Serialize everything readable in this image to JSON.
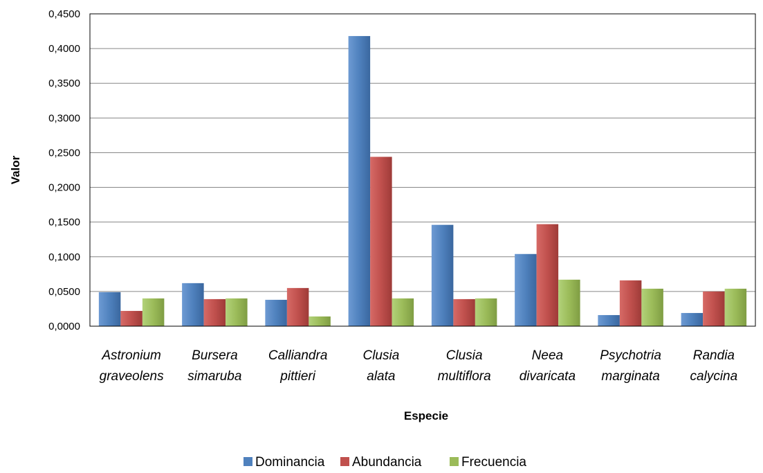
{
  "chart_data": {
    "type": "bar",
    "categories": [
      [
        "Astronium",
        "graveolens"
      ],
      [
        "Bursera",
        "simaruba"
      ],
      [
        "Calliandra",
        "pittieri"
      ],
      [
        "Clusia",
        "alata"
      ],
      [
        "Clusia",
        "multiflora"
      ],
      [
        "Neea",
        "divaricata"
      ],
      [
        "Psychotria",
        "marginata"
      ],
      [
        "Randia",
        "calycina"
      ]
    ],
    "series": [
      {
        "name": "Dominancia",
        "color": "#4f81bd",
        "values": [
          0.049,
          0.062,
          0.038,
          0.418,
          0.146,
          0.104,
          0.016,
          0.019
        ]
      },
      {
        "name": "Abundancia",
        "color": "#c0504d",
        "values": [
          0.022,
          0.039,
          0.055,
          0.244,
          0.039,
          0.147,
          0.066,
          0.05
        ]
      },
      {
        "name": "Frecuencia",
        "color": "#9bbb59",
        "values": [
          0.04,
          0.04,
          0.014,
          0.04,
          0.04,
          0.067,
          0.054,
          0.054
        ]
      }
    ],
    "xlabel": "Especie",
    "ylabel": "Valor",
    "ylim": [
      0,
      0.45
    ],
    "yticks": [
      "0,0000",
      "0,0500",
      "0,1000",
      "0,1500",
      "0,2000",
      "0,2500",
      "0,3000",
      "0,3500",
      "0,4000",
      "0,4500"
    ],
    "grid": true,
    "legend_position": "bottom"
  }
}
